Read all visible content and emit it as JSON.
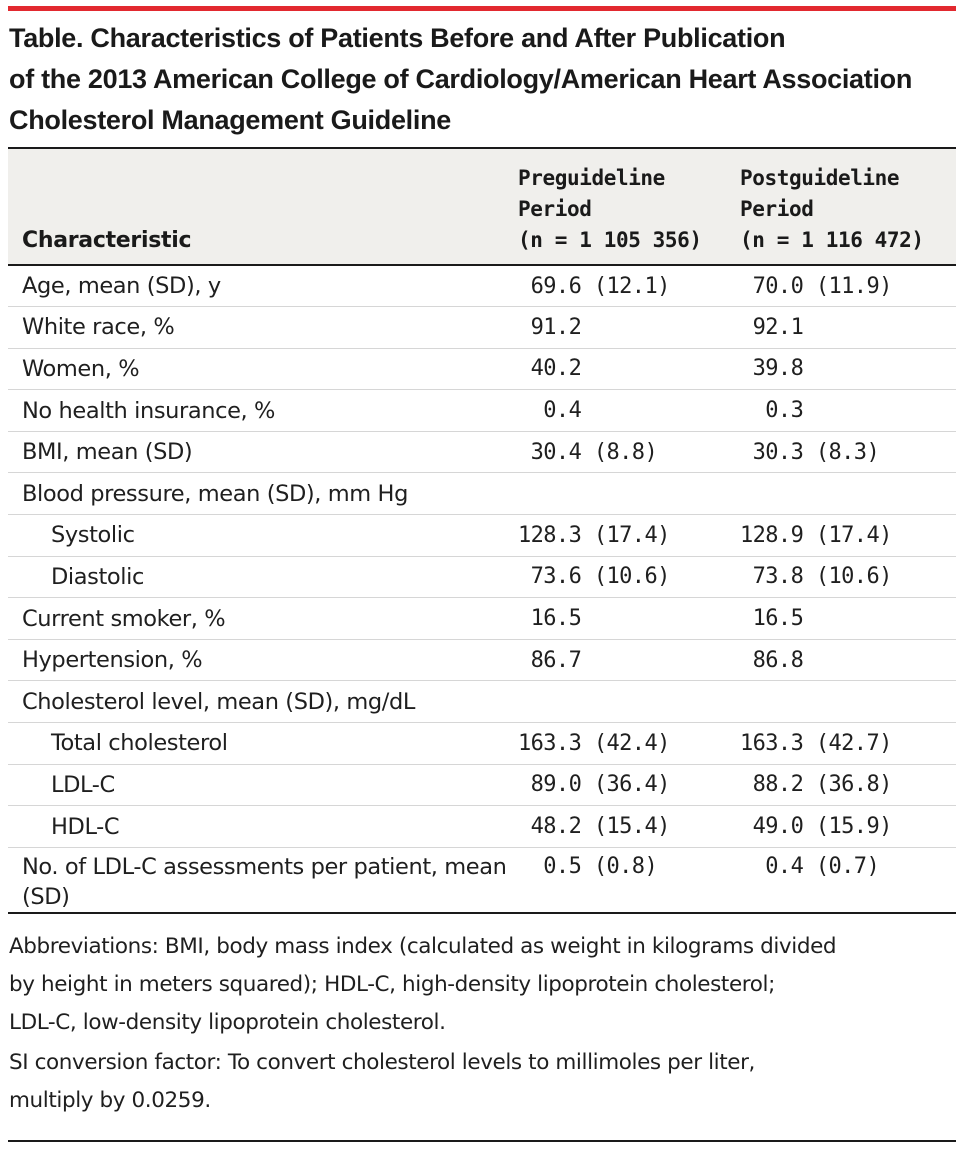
{
  "title": {
    "line1": "Table. Characteristics of Patients Before and After Publication",
    "line2": "of the 2013 American College of Cardiology/American Heart Association",
    "line3": "Cholesterol Management Guideline"
  },
  "table": {
    "headers": {
      "characteristic": "Characteristic",
      "pre": {
        "line1": "Preguideline",
        "line2": "Period",
        "line3": "(n = 1 105 356)"
      },
      "post": {
        "line1": "Postguideline",
        "line2": "Period",
        "line3": "(n = 1 116 472)"
      }
    },
    "rows": [
      {
        "label": "Age, mean (SD), y",
        "pre": " 69.6 (12.1)",
        "post": " 70.0 (11.9)"
      },
      {
        "label": "White race, %",
        "pre": " 91.2",
        "post": " 92.1"
      },
      {
        "label": "Women, %",
        "pre": " 40.2",
        "post": " 39.8"
      },
      {
        "label": "No health insurance, %",
        "pre": "  0.4",
        "post": "  0.3"
      },
      {
        "label": "BMI, mean (SD)",
        "pre": " 30.4 (8.8)",
        "post": " 30.3 (8.3)"
      },
      {
        "label": "Blood pressure, mean (SD), mm Hg",
        "pre": "",
        "post": ""
      },
      {
        "label": "Systolic",
        "pre": "128.3 (17.4)",
        "post": "128.9 (17.4)"
      },
      {
        "label": "Diastolic",
        "pre": " 73.6 (10.6)",
        "post": " 73.8 (10.6)"
      },
      {
        "label": "Current smoker, %",
        "pre": " 16.5",
        "post": " 16.5"
      },
      {
        "label": "Hypertension, %",
        "pre": " 86.7",
        "post": " 86.8"
      },
      {
        "label": "Cholesterol level, mean (SD), mg/dL",
        "pre": "",
        "post": ""
      },
      {
        "label": "Total cholesterol",
        "pre": "163.3 (42.4)",
        "post": "163.3 (42.7)"
      },
      {
        "label": "LDL-C",
        "pre": " 89.0 (36.4)",
        "post": " 88.2 (36.8)"
      },
      {
        "label": "HDL-C",
        "pre": " 48.2 (15.4)",
        "post": " 49.0 (15.9)"
      },
      {
        "label": "No. of LDL-C assessments per patient, mean (SD)",
        "pre": "  0.5 (0.8)",
        "post": "  0.4 (0.7)"
      }
    ]
  },
  "footnotes": {
    "abbreviations": {
      "line1": "Abbreviations: BMI, body mass index (calculated as weight in kilograms divided",
      "line2": "by height in meters squared); HDL-C, high-density lipoprotein cholesterol;",
      "line3": "LDL-C, low-density lipoprotein cholesterol."
    },
    "si_conversion": {
      "line1": "SI conversion factor: To convert cholesterol levels to millimoles per liter,",
      "line2": "multiply by 0.0259."
    }
  },
  "colors": {
    "accent_rule": "#e2292f",
    "header_background": "#f0efec",
    "text": "#1f1f1f"
  }
}
